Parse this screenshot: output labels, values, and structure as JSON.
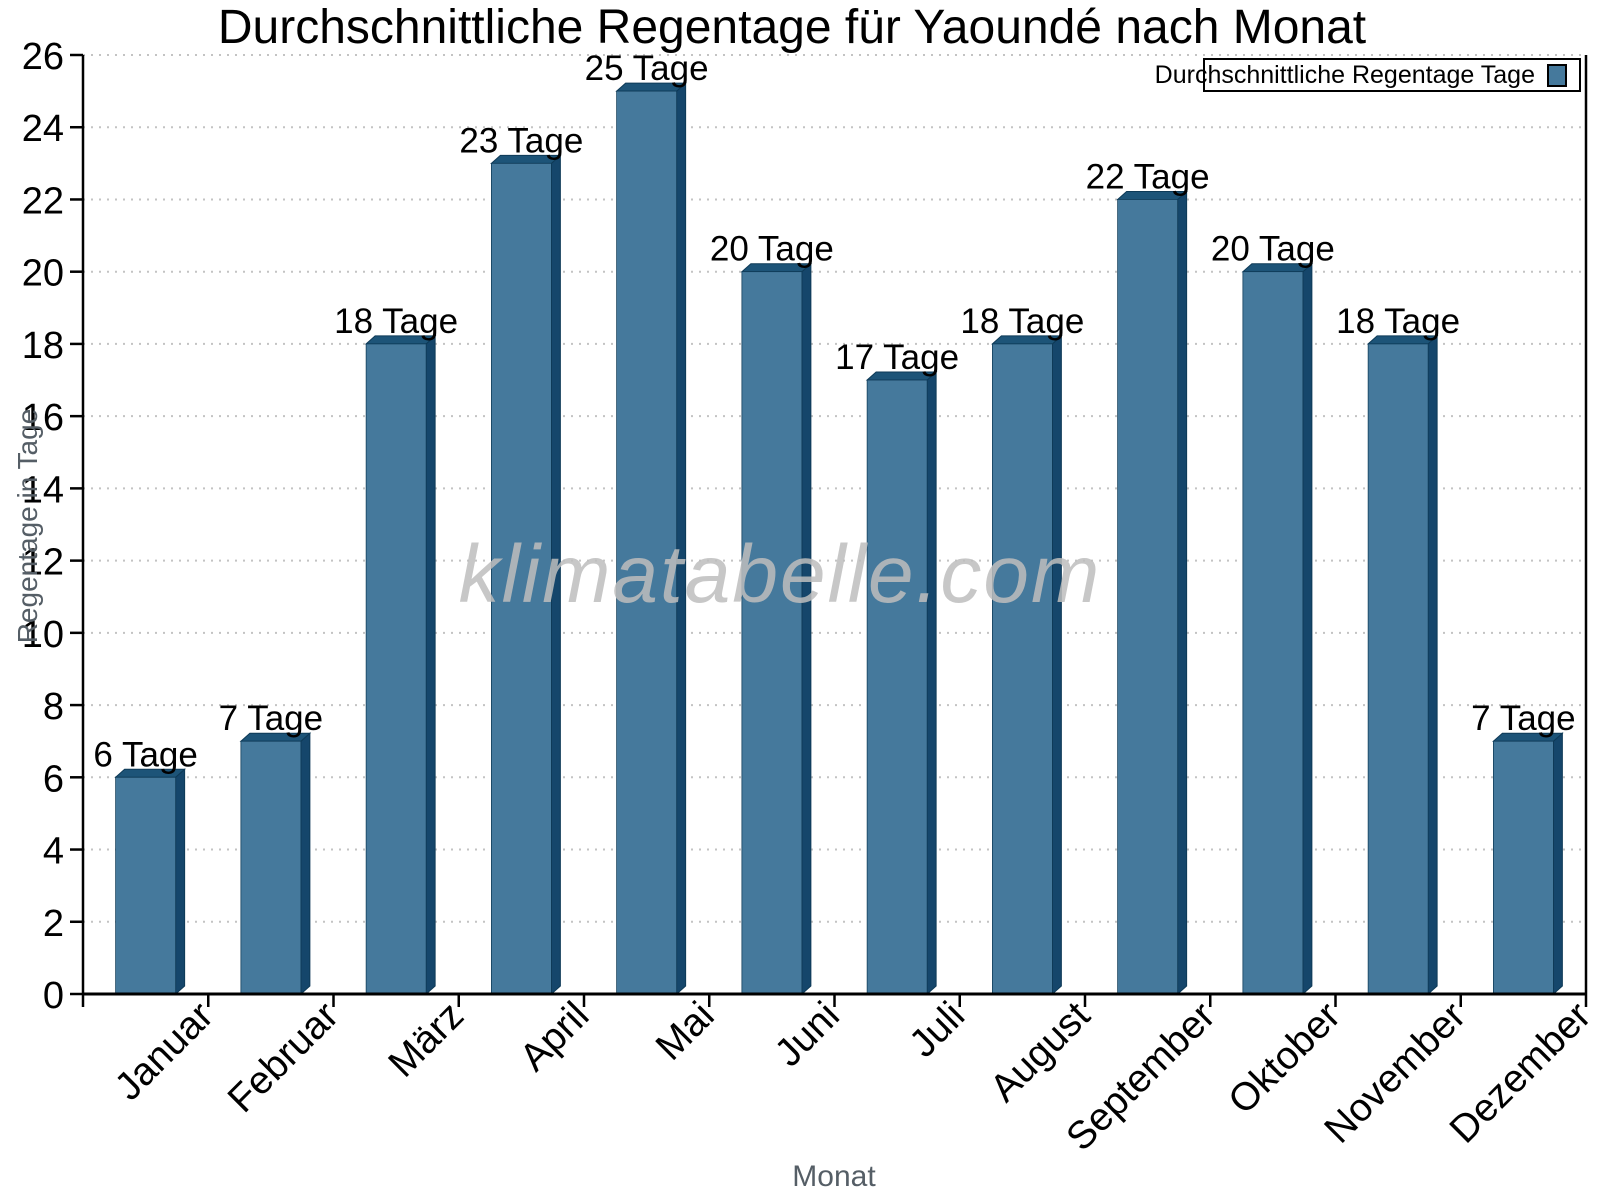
{
  "title": "Durchschnittliche Regentage für Yaoundé nach Monat",
  "watermark": "klimatabelle.com",
  "legend": {
    "label": "Durchschnittliche Regentage Tage"
  },
  "axes": {
    "xlabel": "Monat",
    "ylabel": "Regentage in Tage"
  },
  "chart_data": {
    "type": "bar",
    "title": "Durchschnittliche Regentage für Yaoundé nach Monat",
    "xlabel": "Monat",
    "ylabel": "Regentage in Tage",
    "categories": [
      "Januar",
      "Februar",
      "März",
      "April",
      "Mai",
      "Juni",
      "Juli",
      "August",
      "September",
      "Oktober",
      "November",
      "Dezember"
    ],
    "values": [
      6,
      7,
      18,
      23,
      25,
      20,
      17,
      18,
      22,
      20,
      18,
      7
    ],
    "bar_labels": [
      "6 Tage",
      "7 Tage",
      "18 Tage",
      "23 Tage",
      "25 Tage",
      "20 Tage",
      "17 Tage",
      "18 Tage",
      "22 Tage",
      "20 Tage",
      "18 Tage",
      "7 Tage"
    ],
    "unit": "Tage",
    "ylim": [
      0,
      26
    ],
    "ytick_step": 2,
    "grid": "horizontal-dotted",
    "legend_label": "Durchschnittliche Regentage Tage",
    "legend_position": "top-right",
    "colors": {
      "bar_face": "#45799C",
      "bar_top": "#1D5478",
      "bar_side": "#15466B",
      "bar_outline": "#0E3A57",
      "axis": "#000000",
      "grid": "#C3C3C3",
      "axis_title": "#555E66",
      "tick_label": "#000000",
      "watermark": "#BEBEBE",
      "legend_border": "#000000",
      "background": "#FFFFFF"
    }
  }
}
